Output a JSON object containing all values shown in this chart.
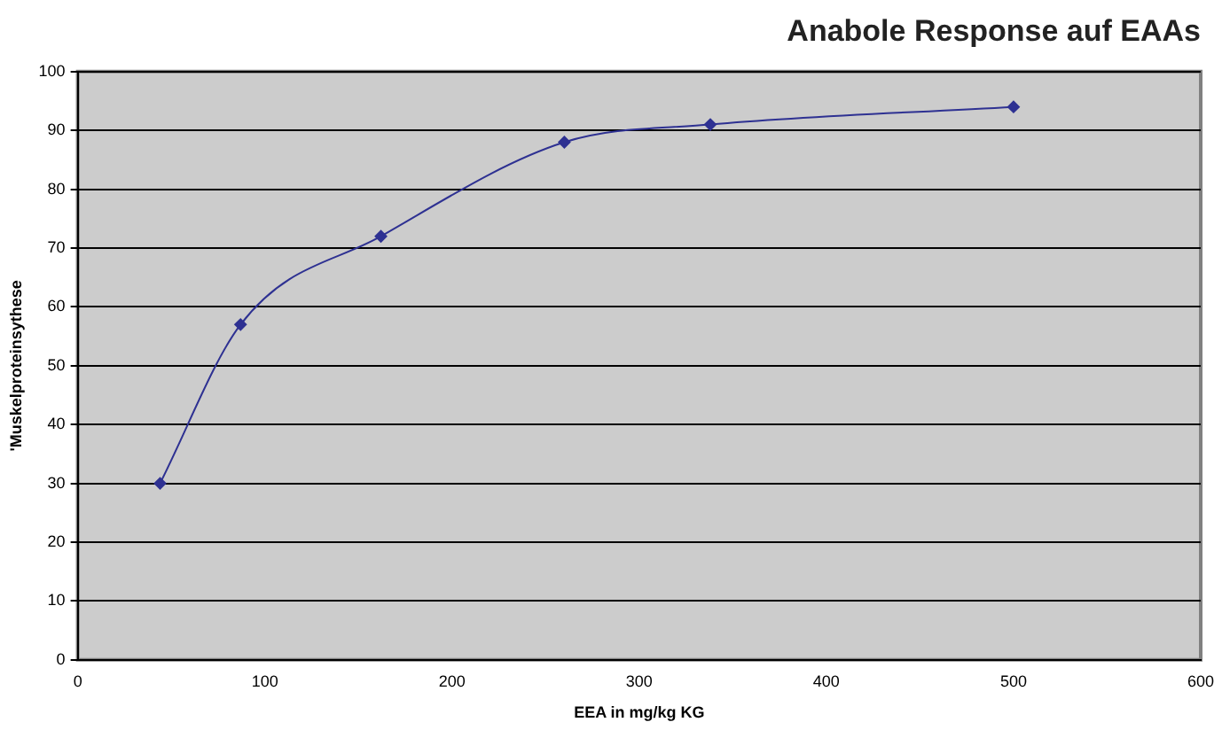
{
  "chart_data": {
    "type": "line",
    "title": "Anabole Response auf EAAs",
    "xlabel": "EEA in mg/kg KG",
    "ylabel": "'Muskelproteinsythese",
    "x": [
      44,
      87,
      162,
      260,
      338,
      500
    ],
    "series": [
      {
        "color": "#2e3192",
        "values": [
          30,
          57,
          72,
          88,
          91,
          94
        ]
      }
    ],
    "xlim": [
      0,
      600
    ],
    "xticks": [
      0,
      100,
      200,
      300,
      400,
      500,
      600
    ],
    "ylim": [
      0,
      100
    ],
    "yticks": [
      0,
      10,
      20,
      30,
      40,
      50,
      60,
      70,
      80,
      90,
      100
    ],
    "grid": "y",
    "legend": false,
    "marker": "diamond",
    "line_style": "solid"
  }
}
